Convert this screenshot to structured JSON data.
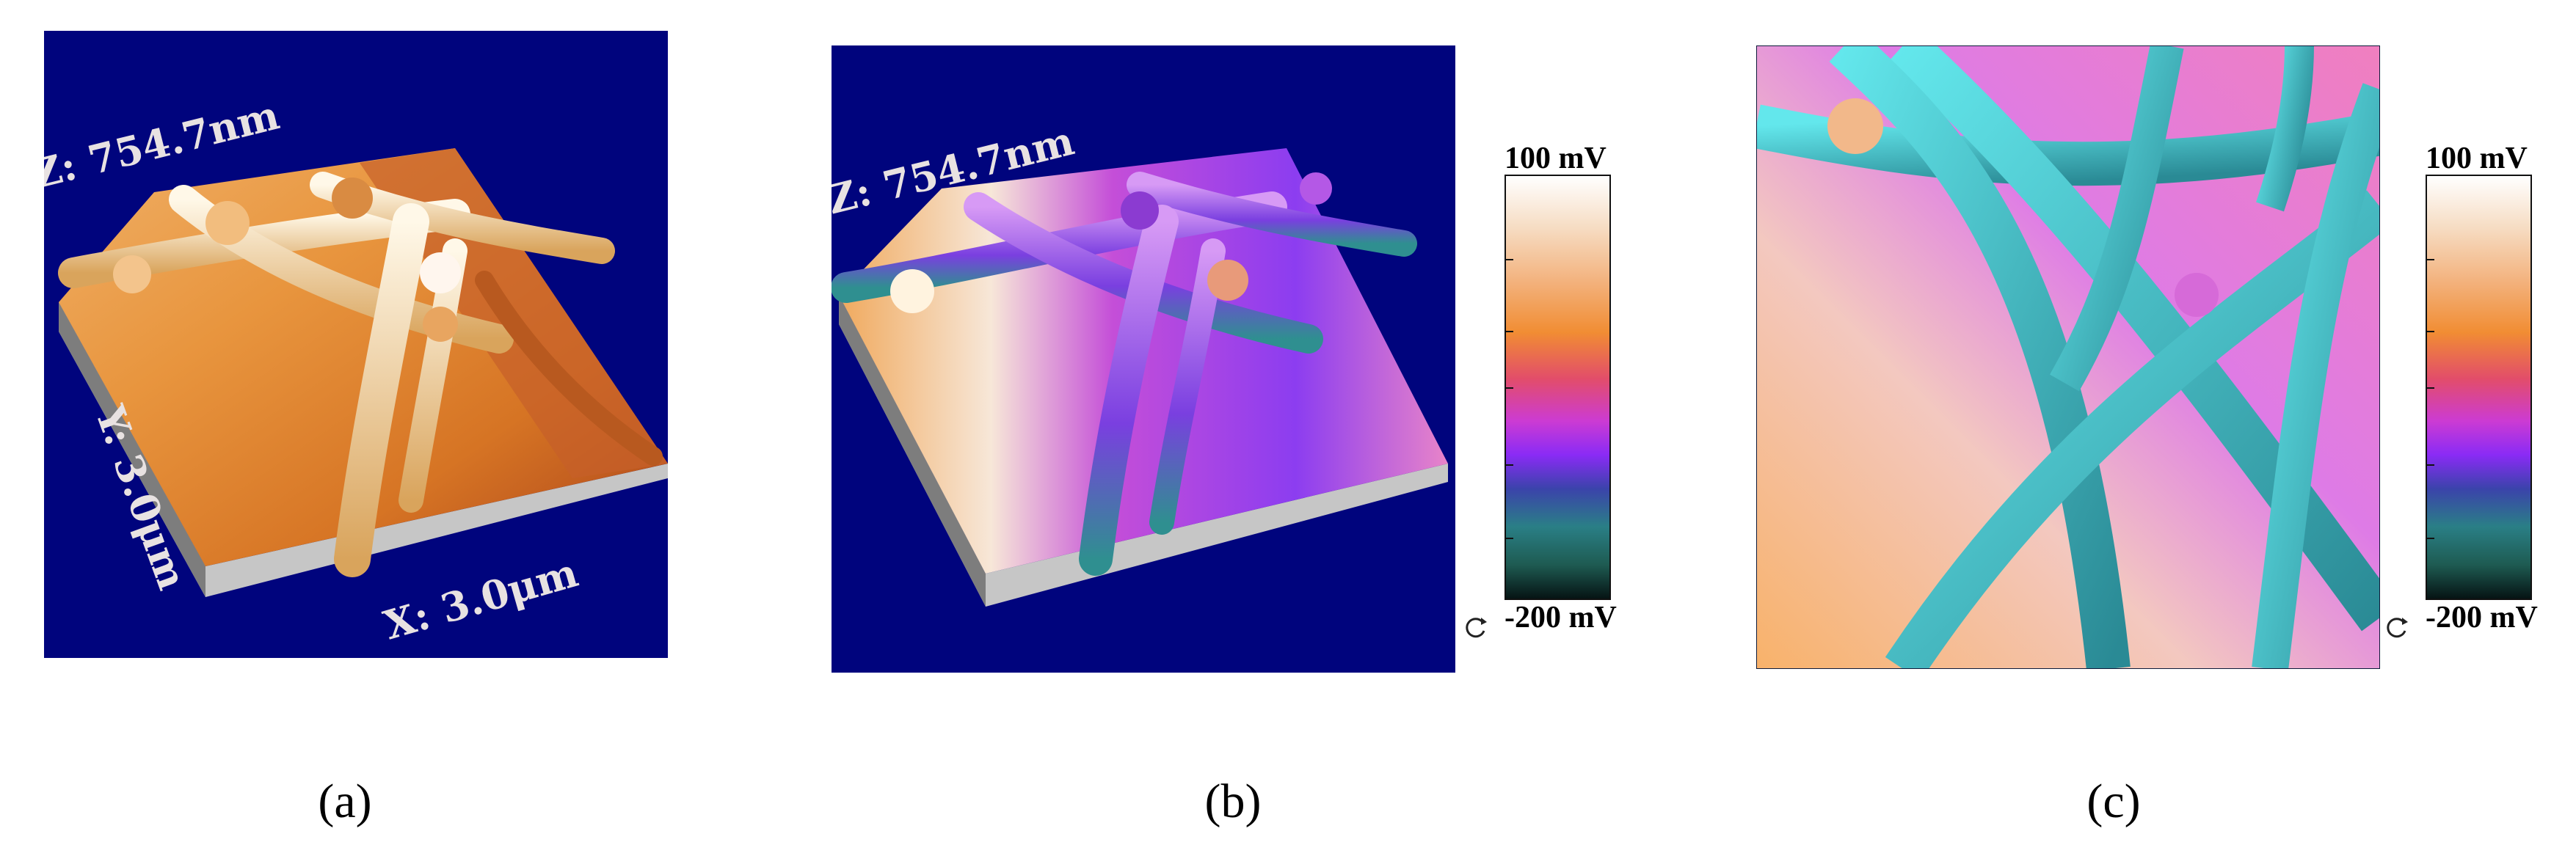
{
  "panels": [
    {
      "caption": "(a)",
      "axis_labels": {
        "z": "Z: 754.7nm",
        "y": "Y: 3.0μm",
        "x": "X: 3.0μm"
      },
      "background_color": "#00047d",
      "colormap": "orange-brown height map"
    },
    {
      "caption": "(b)",
      "axis_labels": {
        "z": "Z: 754.7nm"
      },
      "background_color": "#00047d",
      "colormap": "surface potential overlay",
      "colorbar": {
        "top_label": "100 mV",
        "bottom_label": "-200 mV",
        "icon": "rotate-icon"
      }
    },
    {
      "caption": "(c)",
      "colormap": "surface potential top view",
      "colorbar": {
        "top_label": "100 mV",
        "bottom_label": "-200 mV",
        "icon": "rotate-icon"
      }
    }
  ]
}
